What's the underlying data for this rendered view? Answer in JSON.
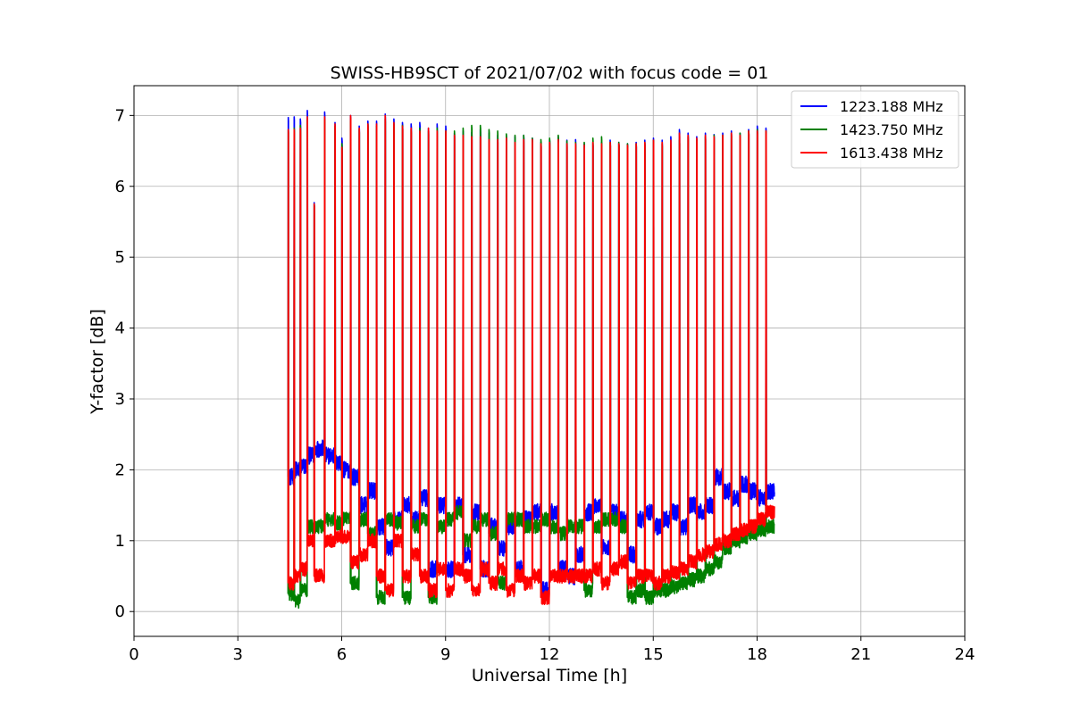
{
  "chart_data": {
    "type": "line",
    "title": "SWISS-HB9SCT of 2021/07/02 with focus code = 01",
    "xlabel": "Universal Time [h]",
    "ylabel": "Y-factor [dB]",
    "xlim": [
      0,
      24
    ],
    "ylim": [
      -0.35,
      7.42
    ],
    "xticks": [
      0,
      3,
      6,
      9,
      12,
      15,
      18,
      21,
      24
    ],
    "xtick_labels": [
      "0",
      "3",
      "6",
      "9",
      "12",
      "15",
      "18",
      "21",
      "24"
    ],
    "yticks": [
      0,
      1,
      2,
      3,
      4,
      5,
      6,
      7
    ],
    "ytick_labels": [
      "0",
      "1",
      "2",
      "3",
      "4",
      "5",
      "6",
      "7"
    ],
    "grid": true,
    "legend_position": "top-right",
    "x_start": 4.45,
    "x_end": 18.5,
    "calibration_peak_times": [
      4.45,
      4.62,
      4.8,
      5.0,
      5.2,
      5.5,
      5.8,
      6.0,
      6.25,
      6.5,
      6.75,
      7.0,
      7.25,
      7.5,
      7.75,
      8.0,
      8.25,
      8.5,
      8.75,
      9.0,
      9.25,
      9.5,
      9.75,
      10.0,
      10.25,
      10.5,
      10.75,
      11.0,
      11.25,
      11.5,
      11.75,
      12.0,
      12.25,
      12.5,
      12.75,
      13.0,
      13.25,
      13.5,
      13.75,
      14.0,
      14.25,
      14.5,
      14.75,
      15.0,
      15.25,
      15.5,
      15.75,
      16.0,
      16.25,
      16.5,
      16.75,
      17.0,
      17.25,
      17.5,
      17.75,
      18.0,
      18.25
    ],
    "series": [
      {
        "name": "1223.188 MHz",
        "color": "#0000ff",
        "peak_values": [
          6.97,
          6.98,
          6.95,
          7.07,
          5.77,
          7.05,
          6.9,
          6.68,
          7.0,
          6.85,
          6.92,
          6.92,
          7.02,
          6.95,
          6.9,
          6.88,
          6.9,
          6.82,
          6.88,
          6.85,
          6.75,
          6.78,
          6.76,
          6.8,
          6.75,
          6.72,
          6.72,
          6.7,
          6.72,
          6.68,
          6.62,
          6.66,
          6.7,
          6.65,
          6.66,
          6.6,
          6.62,
          6.62,
          6.65,
          6.62,
          6.6,
          6.62,
          6.65,
          6.68,
          6.65,
          6.7,
          6.8,
          6.75,
          6.7,
          6.75,
          6.73,
          6.75,
          6.78,
          6.75,
          6.8,
          6.85,
          6.82
        ],
        "baseline_values": [
          1.9,
          2.0,
          2.05,
          2.2,
          2.3,
          2.2,
          2.1,
          2.0,
          1.9,
          1.5,
          1.7,
          1.2,
          0.9,
          1.3,
          1.5,
          1.3,
          1.6,
          0.6,
          1.5,
          0.6,
          1.5,
          0.8,
          1.4,
          0.6,
          1.2,
          0.9,
          1.2,
          0.6,
          1.3,
          1.4,
          0.3,
          1.4,
          0.6,
          0.5,
          0.8,
          1.4,
          1.5,
          0.9,
          1.4,
          1.3,
          0.8,
          1.3,
          1.4,
          1.2,
          1.3,
          1.4,
          1.2,
          1.5,
          1.4,
          1.5,
          1.9,
          1.7,
          1.6,
          1.8,
          1.7,
          1.6,
          1.7
        ],
        "noise": 0.12
      },
      {
        "name": "1423.750 MHz",
        "color": "#008000",
        "peak_values": [
          6.8,
          6.82,
          6.86,
          6.95,
          5.75,
          6.95,
          6.85,
          6.6,
          6.92,
          6.8,
          6.88,
          6.85,
          6.95,
          6.88,
          6.86,
          6.8,
          6.82,
          6.78,
          6.82,
          6.78,
          6.78,
          6.82,
          6.86,
          6.86,
          6.8,
          6.78,
          6.74,
          6.72,
          6.72,
          6.68,
          6.66,
          6.68,
          6.72,
          6.64,
          6.62,
          6.62,
          6.68,
          6.7,
          6.62,
          6.62,
          6.6,
          6.6,
          6.62,
          6.65,
          6.6,
          6.58,
          6.65,
          6.7,
          6.65,
          6.7,
          6.72,
          6.72,
          6.75,
          6.75,
          6.78,
          6.8,
          6.78
        ],
        "baseline_values": [
          0.25,
          0.15,
          0.3,
          1.2,
          1.2,
          1.3,
          1.25,
          1.3,
          0.4,
          1.3,
          1.1,
          0.2,
          1.3,
          1.25,
          0.2,
          1.2,
          1.3,
          0.2,
          1.2,
          1.3,
          1.4,
          1.0,
          1.2,
          1.3,
          1.1,
          0.4,
          1.3,
          1.3,
          1.2,
          1.2,
          1.3,
          1.2,
          1.1,
          1.2,
          1.2,
          0.3,
          1.2,
          1.3,
          1.3,
          1.2,
          0.2,
          0.3,
          0.2,
          0.3,
          0.3,
          0.35,
          0.4,
          0.45,
          0.5,
          0.6,
          0.7,
          0.9,
          1.0,
          1.05,
          1.1,
          1.15,
          1.2
        ],
        "noise": 0.1
      },
      {
        "name": "1613.438 MHz",
        "color": "#ff0000",
        "peak_values": [
          6.8,
          6.8,
          6.82,
          6.98,
          5.75,
          6.98,
          6.88,
          6.55,
          7.0,
          6.82,
          6.88,
          6.88,
          7.0,
          6.9,
          6.85,
          6.82,
          6.78,
          6.82,
          6.78,
          6.78,
          6.72,
          6.72,
          6.7,
          6.7,
          6.66,
          6.66,
          6.68,
          6.62,
          6.66,
          6.66,
          6.6,
          6.62,
          6.66,
          6.6,
          6.6,
          6.58,
          6.62,
          6.6,
          6.62,
          6.6,
          6.58,
          6.6,
          6.62,
          6.65,
          6.62,
          6.65,
          6.75,
          6.72,
          6.68,
          6.72,
          6.7,
          6.72,
          6.75,
          6.72,
          6.78,
          6.78,
          6.78
        ],
        "baseline_values": [
          0.4,
          0.5,
          0.6,
          1.0,
          0.5,
          1.0,
          1.05,
          1.05,
          0.7,
          0.8,
          1.0,
          0.5,
          0.3,
          1.0,
          0.5,
          0.8,
          0.5,
          0.3,
          0.6,
          0.3,
          0.6,
          0.5,
          0.3,
          0.6,
          0.4,
          0.6,
          0.3,
          0.5,
          0.4,
          0.5,
          0.2,
          0.5,
          0.5,
          0.5,
          0.5,
          0.5,
          0.6,
          0.4,
          0.6,
          0.7,
          0.4,
          0.5,
          0.5,
          0.4,
          0.5,
          0.55,
          0.6,
          0.7,
          0.8,
          0.85,
          0.95,
          1.0,
          1.1,
          1.15,
          1.2,
          1.3,
          1.4
        ],
        "noise": 0.1
      }
    ]
  }
}
